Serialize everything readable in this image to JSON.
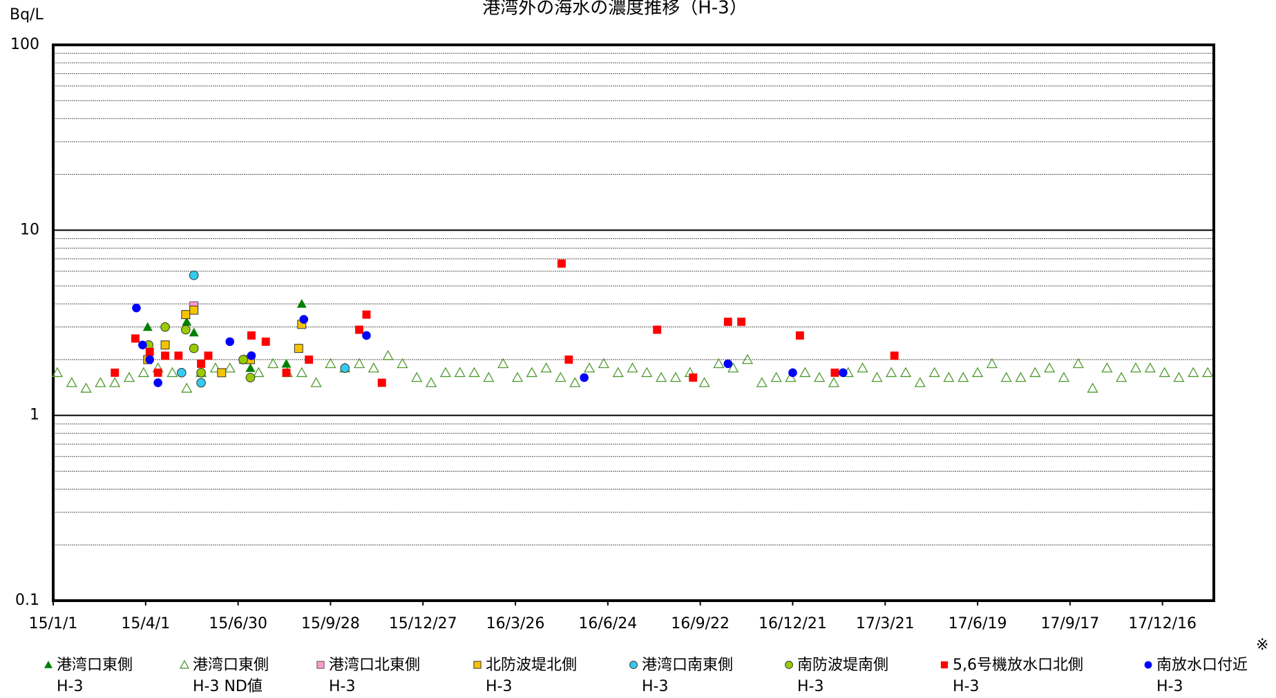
{
  "chart_data": {
    "type": "scatter",
    "title": "港湾外の海水の濃度推移（H-3）",
    "y_label": "Bq/L",
    "note": "※",
    "yscale": "log",
    "ylim": [
      0.1,
      100
    ],
    "yticks": [
      0.1,
      1,
      10,
      100
    ],
    "minor_yticks": [
      0.2,
      0.3,
      0.4,
      0.5,
      0.6,
      0.7,
      0.8,
      0.9,
      2,
      3,
      4,
      5,
      6,
      7,
      8,
      9,
      20,
      30,
      40,
      50,
      60,
      70,
      80,
      90
    ],
    "grid": true,
    "xlim": [
      "15/1/1",
      "18/2/4"
    ],
    "xticks": [
      "15/1/1",
      "15/4/1",
      "15/6/30",
      "15/9/28",
      "15/12/27",
      "16/3/26",
      "16/6/24",
      "16/9/22",
      "16/12/21",
      "17/3/21",
      "17/6/19",
      "17/9/17",
      "17/12/16"
    ],
    "legend": "bottom",
    "series": [
      {
        "name": "港湾口東側\nH-3",
        "marker": "triangle",
        "color": "#008000",
        "x": [
          "15/4/3",
          "15/5/10",
          "15/5/11",
          "15/5/18",
          "15/7/12",
          "15/8/16",
          "15/8/31"
        ],
        "values": [
          3.0,
          3.5,
          3.2,
          2.8,
          1.8,
          1.9,
          4.0
        ]
      },
      {
        "name": "港湾口東側\nH-3 ND値",
        "marker": "triangle-open",
        "color": "#4e9a2e",
        "x": [
          "15/1/5",
          "15/1/19",
          "15/2/2",
          "15/2/16",
          "15/3/2",
          "15/3/16",
          "15/3/30",
          "15/4/13",
          "15/4/27",
          "15/5/11",
          "15/5/25",
          "15/6/8",
          "15/6/22",
          "15/7/6",
          "15/7/20",
          "15/8/3",
          "15/8/17",
          "15/8/31",
          "15/9/14",
          "15/9/28",
          "15/10/12",
          "15/10/26",
          "15/11/9",
          "15/11/23",
          "15/12/7",
          "15/12/21",
          "16/1/4",
          "16/1/18",
          "16/2/1",
          "16/2/15",
          "16/2/29",
          "16/3/14",
          "16/3/28",
          "16/4/11",
          "16/4/25",
          "16/5/9",
          "16/5/23",
          "16/6/6",
          "16/6/20",
          "16/7/4",
          "16/7/18",
          "16/8/1",
          "16/8/15",
          "16/8/29",
          "16/9/12",
          "16/9/26",
          "16/10/10",
          "16/10/24",
          "16/11/7",
          "16/11/21",
          "16/12/5",
          "16/12/19",
          "17/1/2",
          "17/1/16",
          "17/1/30",
          "17/2/13",
          "17/2/27",
          "17/3/13",
          "17/3/27",
          "17/4/10",
          "17/4/24",
          "17/5/8",
          "17/5/22",
          "17/6/5",
          "17/6/19",
          "17/7/3",
          "17/7/17",
          "17/7/31",
          "17/8/14",
          "17/8/28",
          "17/9/11",
          "17/9/25",
          "17/10/9",
          "17/10/23",
          "17/11/6",
          "17/11/20",
          "17/12/4",
          "17/12/18",
          "18/1/1",
          "18/1/15",
          "18/1/29"
        ],
        "values": [
          1.7,
          1.5,
          1.4,
          1.5,
          1.5,
          1.6,
          1.7,
          1.8,
          1.7,
          1.4,
          1.7,
          1.8,
          1.8,
          2.0,
          1.7,
          1.9,
          1.7,
          1.7,
          1.5,
          1.9,
          1.8,
          1.9,
          1.8,
          2.1,
          1.9,
          1.6,
          1.5,
          1.7,
          1.7,
          1.7,
          1.6,
          1.9,
          1.6,
          1.7,
          1.8,
          1.6,
          1.5,
          1.8,
          1.9,
          1.7,
          1.8,
          1.7,
          1.6,
          1.6,
          1.7,
          1.5,
          1.9,
          1.8,
          2.0,
          1.5,
          1.6,
          1.6,
          1.7,
          1.6,
          1.5,
          1.7,
          1.8,
          1.6,
          1.7,
          1.7,
          1.5,
          1.7,
          1.6,
          1.6,
          1.7,
          1.9,
          1.6,
          1.6,
          1.7,
          1.8,
          1.6,
          1.9,
          1.4,
          1.8,
          1.6,
          1.8,
          1.8,
          1.7,
          1.6,
          1.7,
          1.7
        ]
      },
      {
        "name": "港湾口北東側\nH-3",
        "marker": "square",
        "color": "#ff99cc",
        "edge": "#555555",
        "x": [
          "15/5/18"
        ],
        "values": [
          3.9
        ]
      },
      {
        "name": "北防波堤北側\nH-3",
        "marker": "square",
        "color": "#f5c400",
        "edge": "#333333",
        "x": [
          "15/4/3",
          "15/4/20",
          "15/5/10",
          "15/5/18",
          "15/6/14",
          "15/7/12",
          "15/8/28",
          "15/8/31"
        ],
        "values": [
          2.0,
          2.4,
          3.5,
          3.7,
          1.7,
          2.0,
          2.3,
          3.1
        ]
      },
      {
        "name": "港湾口南東側\nH-3",
        "marker": "circle",
        "color": "#33ccee",
        "edge": "#333333",
        "x": [
          "15/5/6",
          "15/5/18",
          "15/5/25",
          "15/10/12"
        ],
        "values": [
          1.7,
          5.7,
          1.5,
          1.8
        ]
      },
      {
        "name": "南防波堤南側\nH-3",
        "marker": "circle",
        "color": "#99cc00",
        "edge": "#333333",
        "x": [
          "15/4/4",
          "15/4/20",
          "15/5/10",
          "15/5/18",
          "15/5/25",
          "15/7/5",
          "15/7/12"
        ],
        "values": [
          2.4,
          3.0,
          2.9,
          2.3,
          1.7,
          2.0,
          1.6
        ]
      },
      {
        "name": "5,6号機放水口北側\nH-3",
        "marker": "square",
        "color": "#ff0000",
        "x": [
          "15/3/2",
          "15/3/22",
          "15/4/5",
          "15/4/13",
          "15/4/20",
          "15/5/3",
          "15/5/25",
          "15/6/1",
          "15/7/13",
          "15/7/27",
          "15/8/16",
          "15/9/7",
          "15/10/26",
          "15/11/2",
          "15/11/17",
          "16/5/10",
          "16/5/17",
          "16/8/11",
          "16/9/15",
          "16/10/19",
          "16/11/1",
          "16/12/28",
          "17/1/31",
          "17/3/30"
        ],
        "values": [
          1.7,
          2.6,
          2.2,
          1.7,
          2.1,
          2.1,
          1.9,
          2.1,
          2.7,
          2.5,
          1.7,
          2.0,
          2.9,
          3.5,
          1.5,
          6.6,
          2.0,
          2.9,
          1.6,
          3.2,
          3.2,
          2.7,
          1.7,
          2.1
        ]
      },
      {
        "name": "南放水口付近\nH-3",
        "marker": "circle",
        "color": "#0000ff",
        "x": [
          "15/3/23",
          "15/3/29",
          "15/4/5",
          "15/4/13",
          "15/6/22",
          "15/7/13",
          "15/9/2",
          "15/11/2",
          "16/6/1",
          "16/10/19",
          "16/12/21",
          "17/2/8"
        ],
        "values": [
          3.8,
          2.4,
          2.0,
          1.5,
          2.5,
          2.1,
          3.3,
          2.7,
          1.6,
          1.9,
          1.7,
          1.7
        ]
      }
    ]
  }
}
